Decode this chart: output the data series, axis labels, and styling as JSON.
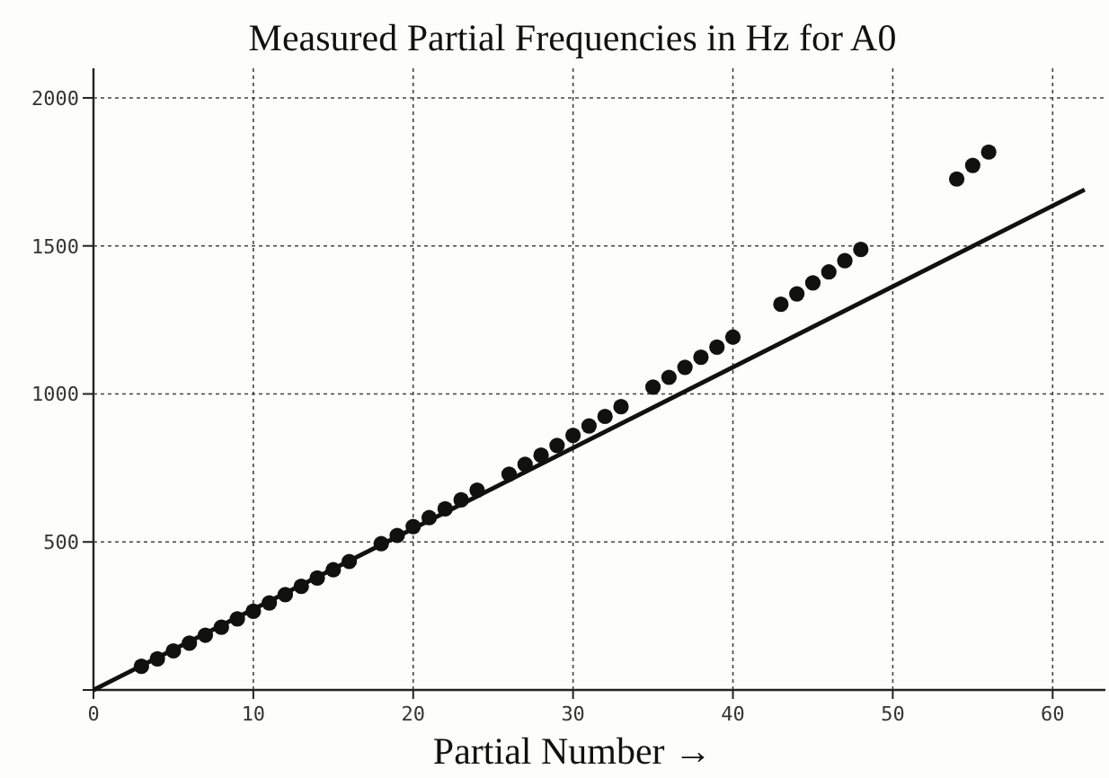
{
  "chart_data": {
    "type": "scatter",
    "title": "Measured Partial Frequencies in Hz for A0",
    "xlabel": "Partial Number →",
    "xlim": [
      0,
      63.3
    ],
    "xticks": [
      0,
      10,
      20,
      30,
      40,
      50,
      60
    ],
    "ylim": [
      0,
      2100
    ],
    "yticks": [
      {
        "value": 0,
        "label": null
      },
      500,
      1000,
      1500,
      2000
    ],
    "grid": true,
    "marker": "circle",
    "series": [
      {
        "color": "#111111",
        "x": [
          3,
          4,
          5,
          6,
          7,
          8,
          9,
          10,
          11,
          12,
          13,
          14,
          15,
          16,
          18,
          19,
          20,
          21,
          22,
          23,
          24,
          26,
          27,
          28,
          29,
          30,
          31,
          32,
          33,
          35,
          36,
          37,
          38,
          39,
          40,
          43,
          44,
          45,
          46,
          47,
          48,
          54,
          55,
          56
        ],
        "values": [
          80,
          105,
          132,
          158,
          185,
          212,
          240,
          266,
          294,
          322,
          350,
          378,
          406,
          434,
          494,
          522,
          552,
          582,
          612,
          642,
          675,
          729,
          762,
          793,
          826,
          860,
          892,
          924,
          957,
          1023,
          1056,
          1090,
          1124,
          1158,
          1192,
          1303,
          1338,
          1375,
          1412,
          1450,
          1488,
          1726,
          1772,
          1817
        ]
      },
      {
        "type": "line",
        "color": "#111111",
        "marker": "none",
        "line_style": "solid",
        "x": [
          0,
          62
        ],
        "values": [
          0,
          1690
        ]
      }
    ]
  }
}
